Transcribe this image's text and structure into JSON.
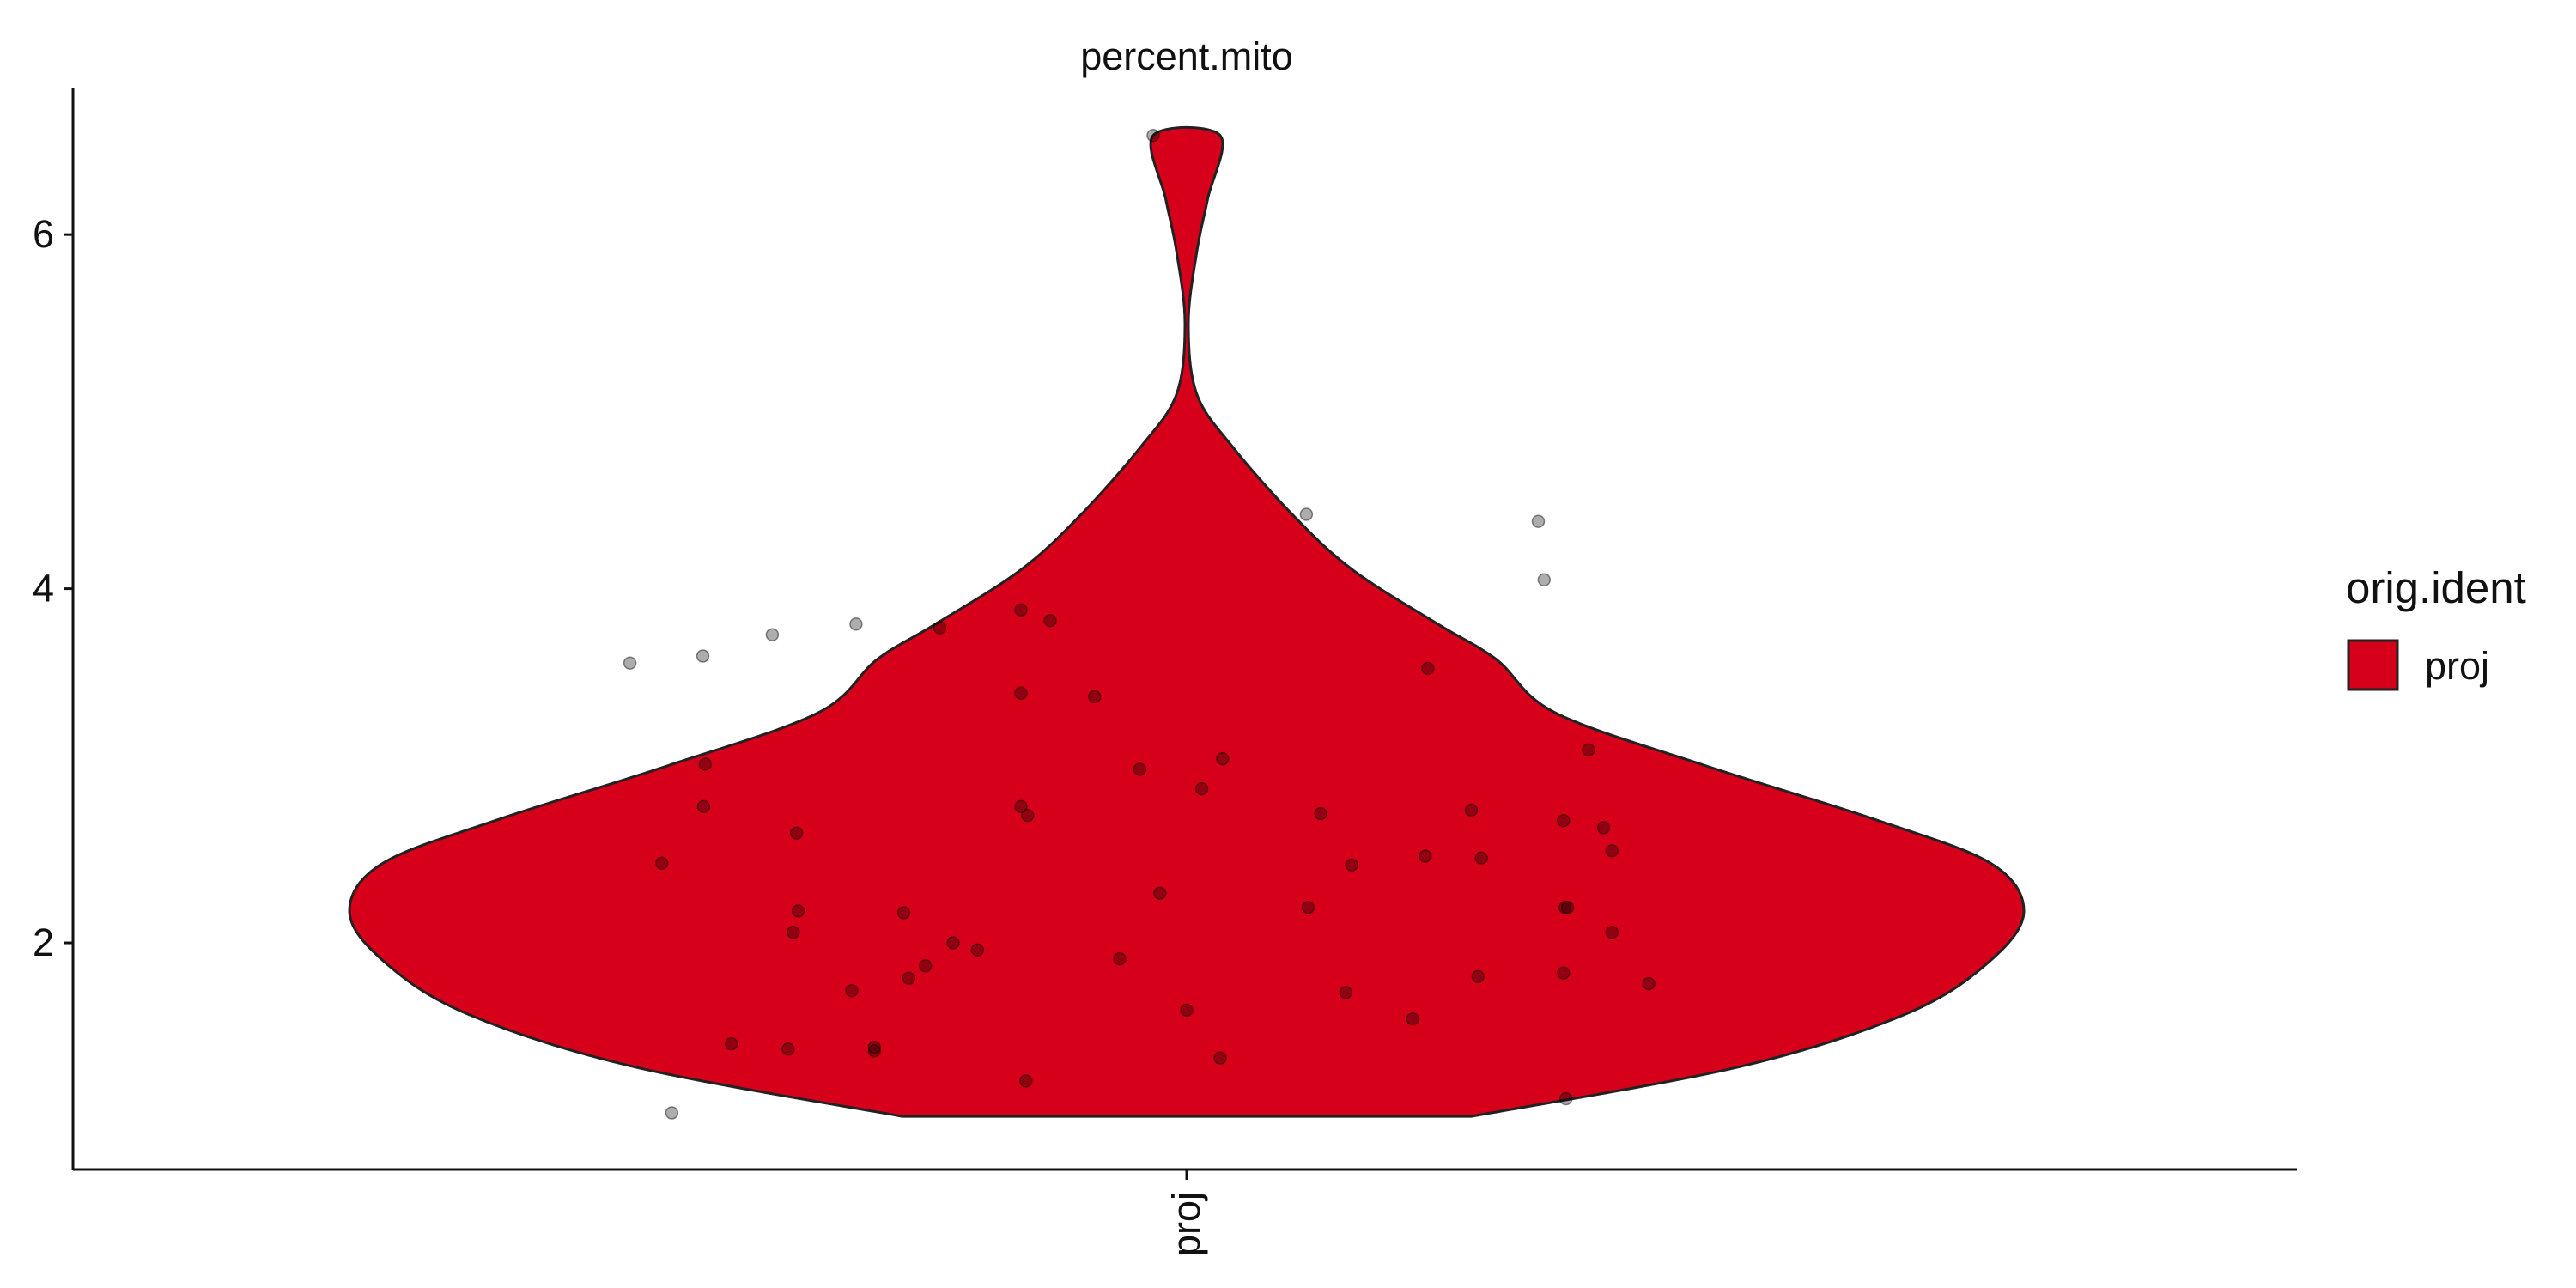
{
  "chart_data": {
    "type": "violin",
    "title": "percent.mito",
    "xlabel": "",
    "ylabel": "",
    "categories": [
      "proj"
    ],
    "y_ticks": [
      2,
      4,
      6
    ],
    "ylim": [
      0.72,
      6.83
    ],
    "grid": false,
    "legend": {
      "title": "orig.ident",
      "placement": "right",
      "items": [
        {
          "label": "proj",
          "color": "#d7001a"
        }
      ]
    },
    "violin": {
      "fill_color": "#d7001a",
      "outline_color": "#222222",
      "y_range": [
        1.02,
        6.56
      ],
      "density_profile": [
        {
          "y": 1.02,
          "width": 0.34
        },
        {
          "y": 1.3,
          "width": 0.66
        },
        {
          "y": 1.6,
          "width": 0.86
        },
        {
          "y": 1.9,
          "width": 0.96
        },
        {
          "y": 2.18,
          "width": 1.0
        },
        {
          "y": 2.45,
          "width": 0.96
        },
        {
          "y": 2.7,
          "width": 0.82
        },
        {
          "y": 3.0,
          "width": 0.62
        },
        {
          "y": 3.3,
          "width": 0.44
        },
        {
          "y": 3.6,
          "width": 0.37
        },
        {
          "y": 3.8,
          "width": 0.3
        },
        {
          "y": 4.1,
          "width": 0.2
        },
        {
          "y": 4.4,
          "width": 0.13
        },
        {
          "y": 4.8,
          "width": 0.055
        },
        {
          "y": 5.1,
          "width": 0.012
        },
        {
          "y": 5.5,
          "width": 0.002
        },
        {
          "y": 5.9,
          "width": 0.012
        },
        {
          "y": 6.2,
          "width": 0.025
        },
        {
          "y": 6.56,
          "width": 0.04
        }
      ]
    },
    "points": [
      {
        "x": -0.665,
        "y": 3.58
      },
      {
        "x": -0.578,
        "y": 3.62
      },
      {
        "x": -0.495,
        "y": 3.74
      },
      {
        "x": -0.615,
        "y": 1.04
      },
      {
        "x": -0.627,
        "y": 2.45
      },
      {
        "x": -0.577,
        "y": 2.77
      },
      {
        "x": -0.575,
        "y": 3.01
      },
      {
        "x": -0.544,
        "y": 1.43
      },
      {
        "x": -0.476,
        "y": 1.4
      },
      {
        "x": -0.47,
        "y": 2.06
      },
      {
        "x": -0.464,
        "y": 2.18
      },
      {
        "x": -0.466,
        "y": 2.62
      },
      {
        "x": -0.395,
        "y": 3.8
      },
      {
        "x": -0.4,
        "y": 1.73
      },
      {
        "x": -0.373,
        "y": 1.39
      },
      {
        "x": -0.373,
        "y": 1.41
      },
      {
        "x": -0.338,
        "y": 2.17
      },
      {
        "x": -0.332,
        "y": 1.8
      },
      {
        "x": -0.312,
        "y": 1.87
      },
      {
        "x": -0.295,
        "y": 3.78
      },
      {
        "x": -0.279,
        "y": 2.0
      },
      {
        "x": -0.25,
        "y": 1.96
      },
      {
        "x": -0.198,
        "y": 3.88
      },
      {
        "x": -0.198,
        "y": 3.41
      },
      {
        "x": -0.198,
        "y": 2.77
      },
      {
        "x": -0.19,
        "y": 2.72
      },
      {
        "x": -0.192,
        "y": 1.22
      },
      {
        "x": -0.163,
        "y": 3.82
      },
      {
        "x": -0.11,
        "y": 3.39
      },
      {
        "x": -0.08,
        "y": 1.91
      },
      {
        "x": -0.056,
        "y": 2.98
      },
      {
        "x": -0.032,
        "y": 2.28
      },
      {
        "x": -0.04,
        "y": 6.56
      },
      {
        "x": 0.018,
        "y": 2.87
      },
      {
        "x": 0.0,
        "y": 1.62
      },
      {
        "x": 0.043,
        "y": 3.04
      },
      {
        "x": 0.04,
        "y": 1.35
      },
      {
        "x": 0.143,
        "y": 4.42
      },
      {
        "x": 0.145,
        "y": 2.2
      },
      {
        "x": 0.16,
        "y": 2.73
      },
      {
        "x": 0.19,
        "y": 1.72
      },
      {
        "x": 0.197,
        "y": 2.44
      },
      {
        "x": 0.27,
        "y": 1.57
      },
      {
        "x": 0.285,
        "y": 2.49
      },
      {
        "x": 0.288,
        "y": 3.55
      },
      {
        "x": 0.34,
        "y": 2.75
      },
      {
        "x": 0.348,
        "y": 1.81
      },
      {
        "x": 0.352,
        "y": 2.48
      },
      {
        "x": 0.42,
        "y": 4.38
      },
      {
        "x": 0.427,
        "y": 4.05
      },
      {
        "x": 0.45,
        "y": 2.69
      },
      {
        "x": 0.452,
        "y": 2.2
      },
      {
        "x": 0.45,
        "y": 1.83
      },
      {
        "x": 0.455,
        "y": 2.2
      },
      {
        "x": 0.453,
        "y": 1.12
      },
      {
        "x": 0.48,
        "y": 3.09
      },
      {
        "x": 0.498,
        "y": 2.65
      },
      {
        "x": 0.508,
        "y": 2.52
      },
      {
        "x": 0.508,
        "y": 2.06
      },
      {
        "x": 0.552,
        "y": 1.77
      }
    ]
  }
}
